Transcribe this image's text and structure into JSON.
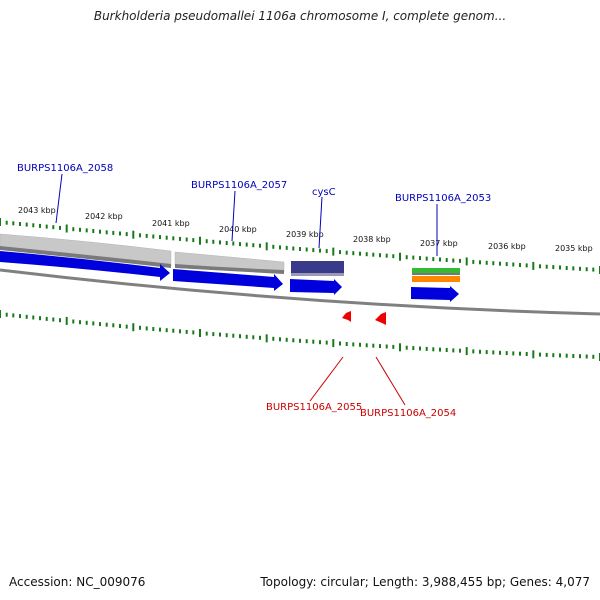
{
  "title": "Burkholderia pseudomallei 1106a chromosome I, complete genom...",
  "accession_text": "Accession: NC_009076",
  "summary_text": "Topology: circular; Length: 3,988,455 bp; Genes: 4,077",
  "colors": {
    "forward_label": "#0000bb",
    "reverse_label": "#cc0000",
    "cds_blue": "#0000dd",
    "reverse_cds": "#ee0000",
    "gene_grey": "#c8c8c8",
    "cysc_band": "#3a3a8a",
    "tick_green": "#1a7a1a",
    "backbone_grey": "#808080",
    "band_green": "#33bb33",
    "band_orange": "#ff8800"
  },
  "kbp_ticks": [
    "2043 kbp",
    "2042 kbp",
    "2041 kbp",
    "2040 kbp",
    "2039 kbp",
    "2038 kbp",
    "2037 kbp",
    "2036 kbp",
    "2035 kbp"
  ],
  "forward_genes": [
    {
      "id": "g2058",
      "label": "BURPS1106A_2058"
    },
    {
      "id": "g2057",
      "label": "BURPS1106A_2057"
    },
    {
      "id": "gcysC",
      "label": "cysC"
    },
    {
      "id": "g2053",
      "label": "BURPS1106A_2053"
    }
  ],
  "reverse_genes": [
    {
      "id": "g2055",
      "label": "BURPS1106A_2055"
    },
    {
      "id": "g2054",
      "label": "BURPS1106A_2054"
    }
  ]
}
